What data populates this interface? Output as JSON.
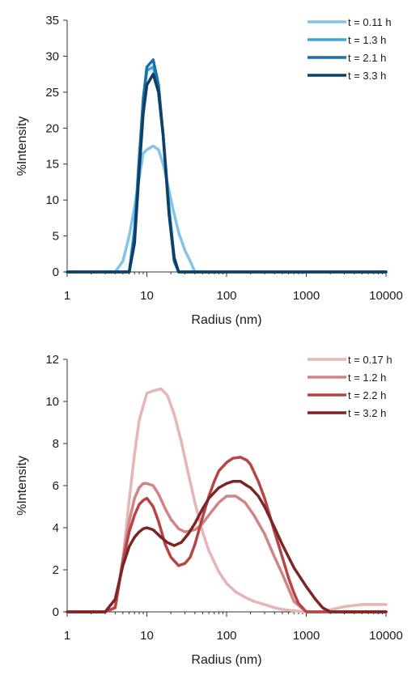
{
  "chart_data": [
    {
      "type": "line",
      "xlabel": "Radius (nm)",
      "ylabel": "%Intensity",
      "xscale": "log",
      "xlim": [
        1,
        10000
      ],
      "ylim": [
        0,
        35
      ],
      "xticks": [
        "1",
        "10",
        "100",
        "1000",
        "10000"
      ],
      "yticks": [
        "0",
        "5",
        "10",
        "15",
        "20",
        "25",
        "30",
        "35"
      ],
      "grid": false,
      "legend_position": "top-right",
      "series": [
        {
          "name": "t = 0.11 h",
          "color": "#84c4ea",
          "x": [
            1,
            2,
            3,
            4,
            5,
            6,
            7,
            8,
            9,
            10,
            12,
            14,
            16,
            18,
            21,
            25,
            30,
            35,
            40,
            50,
            100,
            1000,
            10000
          ],
          "y": [
            0,
            0,
            0,
            0,
            1.5,
            5,
            9,
            13,
            16.5,
            17,
            17.5,
            17,
            15,
            12.5,
            9,
            5.5,
            3,
            1.5,
            0,
            0,
            0,
            0,
            0
          ]
        },
        {
          "name": "t = 1.3 h",
          "color": "#3fa6d8",
          "x": [
            1,
            5,
            6,
            7,
            8,
            9,
            10,
            12,
            14,
            16,
            19,
            22,
            25,
            30,
            100,
            1000,
            10000
          ],
          "y": [
            0,
            0,
            0,
            6,
            16,
            24,
            28,
            28.5,
            25,
            19,
            9,
            2,
            0,
            0,
            0,
            0,
            0
          ]
        },
        {
          "name": "t = 2.1 h",
          "color": "#1a70a8",
          "x": [
            1,
            5,
            6,
            7,
            8,
            9,
            10,
            12,
            14,
            16,
            19,
            22,
            25,
            30,
            100,
            1000,
            10000
          ],
          "y": [
            0,
            0,
            0,
            5,
            15,
            24,
            28.5,
            29.5,
            26,
            19,
            8,
            1.5,
            0,
            0,
            0,
            0,
            0
          ]
        },
        {
          "name": "t = 3.3 h",
          "color": "#0e3f66",
          "x": [
            1,
            5,
            6,
            7,
            8,
            9,
            10,
            12,
            14,
            16,
            19,
            22,
            25,
            30,
            100,
            1000,
            10000
          ],
          "y": [
            0,
            0,
            0,
            4,
            14,
            22,
            26,
            27.5,
            25,
            19,
            8,
            2,
            0,
            0,
            0,
            0,
            0
          ]
        }
      ]
    },
    {
      "type": "line",
      "xlabel": "Radius (nm)",
      "ylabel": "%Intensity",
      "xscale": "log",
      "xlim": [
        1,
        10000
      ],
      "ylim": [
        0,
        12
      ],
      "xticks": [
        "1",
        "10",
        "100",
        "1000",
        "10000"
      ],
      "yticks": [
        "0",
        "2",
        "4",
        "6",
        "8",
        "10",
        "12"
      ],
      "grid": false,
      "legend_position": "top-right",
      "series": [
        {
          "name": "t = 0.17 h",
          "color": "#e6b5b5",
          "x": [
            1,
            3,
            4,
            5,
            6,
            7,
            8,
            10,
            12,
            15,
            18,
            22,
            27,
            33,
            40,
            50,
            60,
            80,
            100,
            130,
            170,
            220,
            300,
            400,
            500,
            700,
            1000,
            1500,
            2000,
            3000,
            5000,
            10000
          ],
          "y": [
            0,
            0,
            0.2,
            2.5,
            5.3,
            7.5,
            9.1,
            10.4,
            10.5,
            10.6,
            10.3,
            9.4,
            8.1,
            6.6,
            5.2,
            3.8,
            2.9,
            1.9,
            1.35,
            0.95,
            0.7,
            0.5,
            0.35,
            0.2,
            0.12,
            0.05,
            0,
            0,
            0.1,
            0.25,
            0.35,
            0.35
          ]
        },
        {
          "name": "t = 1.2 h",
          "color": "#cf8585",
          "x": [
            1,
            3,
            4,
            5,
            6,
            7,
            8,
            9,
            10,
            12,
            14,
            17,
            20,
            25,
            30,
            40,
            50,
            60,
            80,
            100,
            130,
            170,
            220,
            300,
            400,
            500,
            600,
            700,
            1000,
            1500,
            10000
          ],
          "y": [
            0,
            0,
            0.2,
            2.5,
            4.3,
            5.4,
            5.9,
            6.1,
            6.1,
            6.0,
            5.6,
            4.9,
            4.4,
            3.95,
            3.8,
            3.9,
            4.2,
            4.6,
            5.2,
            5.5,
            5.5,
            5.2,
            4.6,
            3.7,
            2.6,
            1.8,
            1.1,
            0.5,
            0,
            0,
            0
          ]
        },
        {
          "name": "t = 2.2 h",
          "color": "#b84545",
          "x": [
            1,
            3,
            4,
            5,
            6,
            7,
            8,
            9,
            10,
            12,
            14,
            17,
            20,
            25,
            30,
            35,
            40,
            50,
            60,
            70,
            80,
            100,
            120,
            150,
            180,
            200,
            250,
            300,
            400,
            500,
            600,
            700,
            800,
            1000,
            1300,
            10000
          ],
          "y": [
            0,
            0,
            0.2,
            2.4,
            3.8,
            4.6,
            5.1,
            5.3,
            5.4,
            5.0,
            4.3,
            3.2,
            2.6,
            2.2,
            2.3,
            2.6,
            3.2,
            4.5,
            5.5,
            6.2,
            6.7,
            7.1,
            7.3,
            7.35,
            7.2,
            7.0,
            6.2,
            5.4,
            3.8,
            2.6,
            1.6,
            0.9,
            0.4,
            0,
            0,
            0
          ]
        },
        {
          "name": "t = 3.2 h",
          "color": "#7d2424",
          "x": [
            1,
            2,
            3,
            4,
            5,
            6,
            7,
            8,
            9,
            10,
            12,
            15,
            18,
            22,
            27,
            33,
            40,
            50,
            60,
            80,
            100,
            120,
            150,
            180,
            200,
            250,
            300,
            400,
            500,
            700,
            1000,
            1300,
            1600,
            2000,
            10000
          ],
          "y": [
            0,
            0,
            0,
            0.6,
            2.2,
            3.1,
            3.55,
            3.8,
            3.95,
            4.0,
            3.9,
            3.55,
            3.3,
            3.15,
            3.3,
            3.7,
            4.2,
            4.9,
            5.4,
            5.9,
            6.1,
            6.2,
            6.2,
            6.0,
            5.9,
            5.5,
            5.0,
            4.0,
            3.2,
            2.1,
            1.2,
            0.6,
            0.2,
            0,
            0
          ]
        }
      ]
    }
  ]
}
